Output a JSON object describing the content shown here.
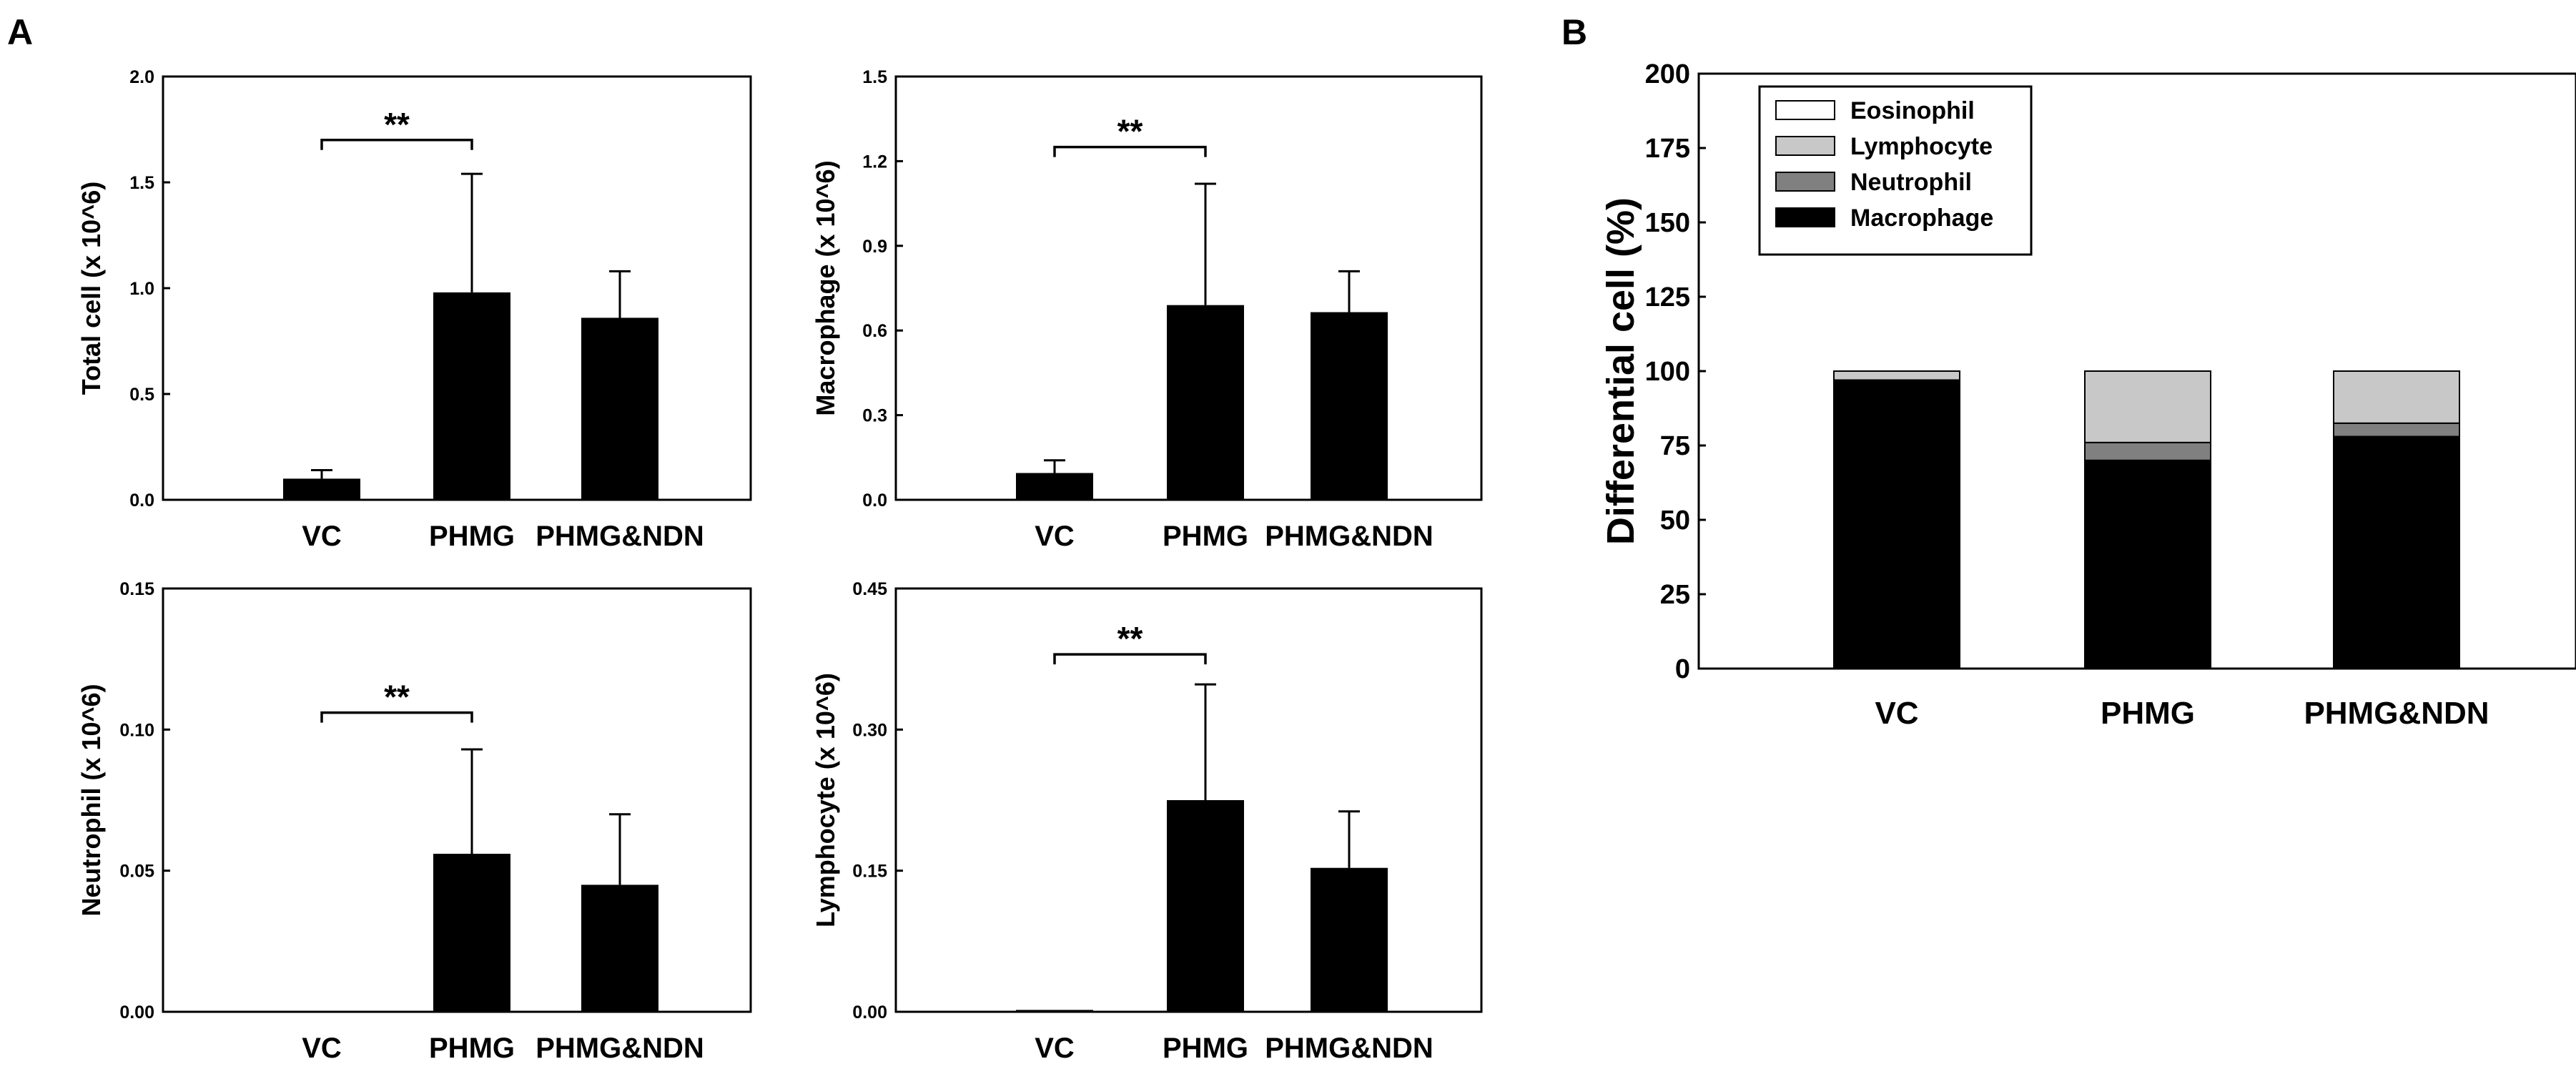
{
  "panels": {
    "a": "A",
    "b": "B"
  },
  "chart_data": [
    {
      "type": "bar",
      "id": "total",
      "ylabel": "Total cell (x 10^6)",
      "categories": [
        "VC",
        "PHMG",
        "PHMG&NDN"
      ],
      "values": [
        0.1,
        0.98,
        0.86
      ],
      "errors": [
        0.04,
        0.56,
        0.22
      ],
      "ylim": [
        0,
        2.0
      ],
      "yticks": [
        "0.0",
        "0.5",
        "1.0",
        "1.5",
        "2.0"
      ],
      "significance": {
        "from": 0,
        "to": 1,
        "label": "**",
        "level": 1.7
      }
    },
    {
      "type": "bar",
      "id": "macrophage",
      "ylabel": "Macrophage (x 10^6)",
      "categories": [
        "VC",
        "PHMG",
        "PHMG&NDN"
      ],
      "values": [
        0.095,
        0.69,
        0.665
      ],
      "errors": [
        0.045,
        0.43,
        0.145
      ],
      "ylim": [
        0,
        1.5
      ],
      "yticks": [
        "0.0",
        "0.3",
        "0.6",
        "0.9",
        "1.2",
        "1.5"
      ],
      "significance": {
        "from": 0,
        "to": 1,
        "label": "**",
        "level": 1.25
      }
    },
    {
      "type": "bar",
      "id": "neutrophil",
      "ylabel": "Neutrophil (x 10^6)",
      "categories": [
        "VC",
        "PHMG",
        "PHMG&NDN"
      ],
      "values": [
        0.0,
        0.056,
        0.045
      ],
      "errors": [
        0.0,
        0.037,
        0.025
      ],
      "ylim": [
        0,
        0.15
      ],
      "yticks": [
        "0.00",
        "0.05",
        "0.10",
        "0.15"
      ],
      "significance": {
        "from": 0,
        "to": 1,
        "label": "**",
        "level": 0.106
      }
    },
    {
      "type": "bar",
      "id": "lymphocyte",
      "ylabel": "Lymphocyte (x 10^6)",
      "categories": [
        "VC",
        "PHMG",
        "PHMG&NDN"
      ],
      "values": [
        0.002,
        0.225,
        0.153
      ],
      "errors": [
        0.0,
        0.123,
        0.06
      ],
      "ylim": [
        0,
        0.45
      ],
      "yticks": [
        "0.00",
        "0.15",
        "0.30",
        "0.45"
      ],
      "significance": {
        "from": 0,
        "to": 1,
        "label": "**",
        "level": 0.38
      }
    },
    {
      "type": "stacked-bar",
      "id": "differential",
      "ylabel": "Differential cell (%)",
      "categories": [
        "VC",
        "PHMG",
        "PHMG&NDN"
      ],
      "ylim": [
        0,
        200
      ],
      "yticks": [
        "0",
        "25",
        "50",
        "75",
        "100",
        "125",
        "150",
        "175",
        "200"
      ],
      "legend_position": "top-left",
      "legend_order": [
        "Eosinophil",
        "Lymphocyte",
        "Neutrophil",
        "Macrophage"
      ],
      "series": [
        {
          "name": "Macrophage",
          "color": "#000000",
          "values": [
            97,
            70,
            78
          ]
        },
        {
          "name": "Neutrophil",
          "color": "#808080",
          "values": [
            0,
            6,
            4.5
          ]
        },
        {
          "name": "Lymphocyte",
          "color": "#c8c8c8",
          "values": [
            3,
            24,
            17.5
          ]
        },
        {
          "name": "Eosinophil",
          "color": "#ffffff",
          "values": [
            0,
            0,
            0
          ]
        }
      ]
    }
  ]
}
